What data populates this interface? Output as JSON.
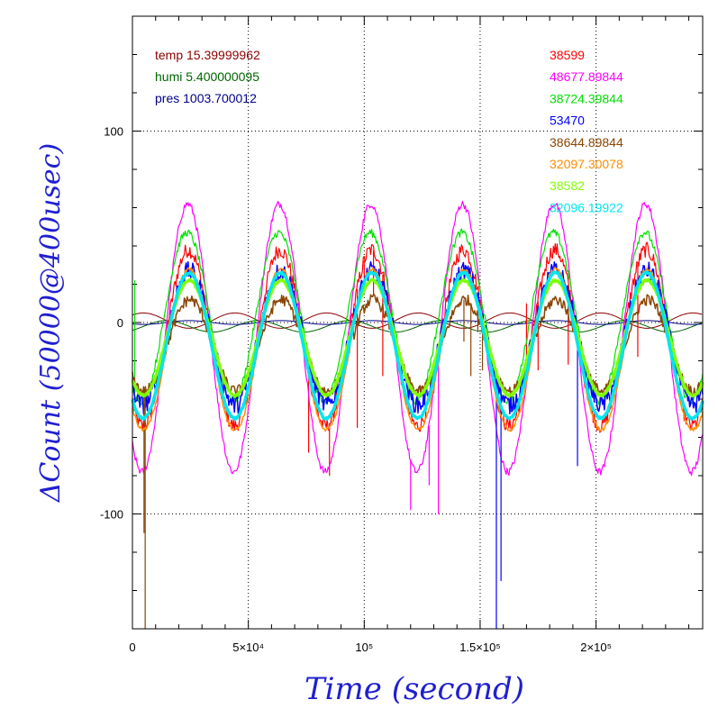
{
  "chart_data": {
    "type": "line",
    "xlabel": "Time (second)",
    "ylabel": "ΔCount (50000@400usec)",
    "xlim": [
      0,
      246000
    ],
    "ylim": [
      -160,
      160
    ],
    "x_ticks": [
      {
        "value": 0,
        "label": "0"
      },
      {
        "value": 50000,
        "label": "5×10⁴"
      },
      {
        "value": 100000,
        "label": "10⁵"
      },
      {
        "value": 150000,
        "label": "1.5×10⁵"
      },
      {
        "value": 200000,
        "label": "2×10⁵"
      }
    ],
    "y_ticks": [
      {
        "value": -100,
        "label": "-100"
      },
      {
        "value": 0,
        "label": "0"
      },
      {
        "value": 100,
        "label": "100"
      }
    ],
    "grid": true,
    "env_legend": [
      {
        "label": "temp 15.39999962",
        "color": "#8b0000"
      },
      {
        "label": "humi 5.400000095",
        "color": "#006400"
      },
      {
        "label": "pres 1003.700012",
        "color": "#00008b"
      }
    ],
    "series": [
      {
        "name": "38599",
        "color": "#ff0000",
        "amplitude": 46,
        "offset": -8,
        "phase": 0.05,
        "width": 1.2,
        "noise": 4,
        "spikes": [
          [
            76000,
            -68
          ],
          [
            85000,
            -80
          ],
          [
            88000,
            -35
          ],
          [
            97000,
            -55
          ],
          [
            100000,
            18
          ],
          [
            104000,
            15
          ],
          [
            108000,
            -28
          ],
          [
            170000,
            10
          ],
          [
            175000,
            -25
          ],
          [
            188000,
            -22
          ],
          [
            218000,
            -18
          ]
        ]
      },
      {
        "name": "48677.89844",
        "color": "#ff00ff",
        "amplitude": 70,
        "offset": -8,
        "phase": 0.1,
        "width": 1.2,
        "noise": 2,
        "spikes": [
          [
            120000,
            -98
          ],
          [
            128000,
            -85
          ],
          [
            132000,
            -100
          ]
        ]
      },
      {
        "name": "38724.39844",
        "color": "#00e000",
        "amplitude": 44,
        "offset": 3,
        "phase": 0.15,
        "width": 1.2,
        "noise": 2,
        "spikes": [
          [
            1000,
            22
          ]
        ]
      },
      {
        "name": "53470",
        "color": "#0000ff",
        "amplitude": 35,
        "offset": -8,
        "phase": 0.0,
        "width": 1.5,
        "noise": 5,
        "spikes": [
          [
            157000,
            -160
          ],
          [
            159000,
            -135
          ],
          [
            192000,
            -75
          ]
        ]
      },
      {
        "name": "38644.89844",
        "color": "#8b4500",
        "amplitude": 24,
        "offset": -12,
        "phase": -0.05,
        "width": 1.5,
        "noise": 3,
        "spikes": [
          [
            5000,
            -110
          ],
          [
            5500,
            -160
          ],
          [
            143000,
            -10
          ],
          [
            146000,
            -28
          ],
          [
            149000,
            -5
          ],
          [
            151000,
            -25
          ]
        ]
      },
      {
        "name": "32097.30078",
        "color": "#ff8c00",
        "amplitude": 42,
        "offset": -14,
        "phase": 0.0,
        "width": 1.5,
        "noise": 1,
        "spikes": []
      },
      {
        "name": "38582",
        "color": "#7fff00",
        "amplitude": 30,
        "offset": -8,
        "phase": 0.0,
        "width": 3.5,
        "noise": 0.5,
        "spikes": []
      },
      {
        "name": "32096.19922",
        "color": "#00e5ee",
        "amplitude": 38,
        "offset": -12,
        "phase": 0.03,
        "width": 3.5,
        "noise": 0.5,
        "spikes": []
      }
    ],
    "period": 39500,
    "first_peak": 24500
  }
}
